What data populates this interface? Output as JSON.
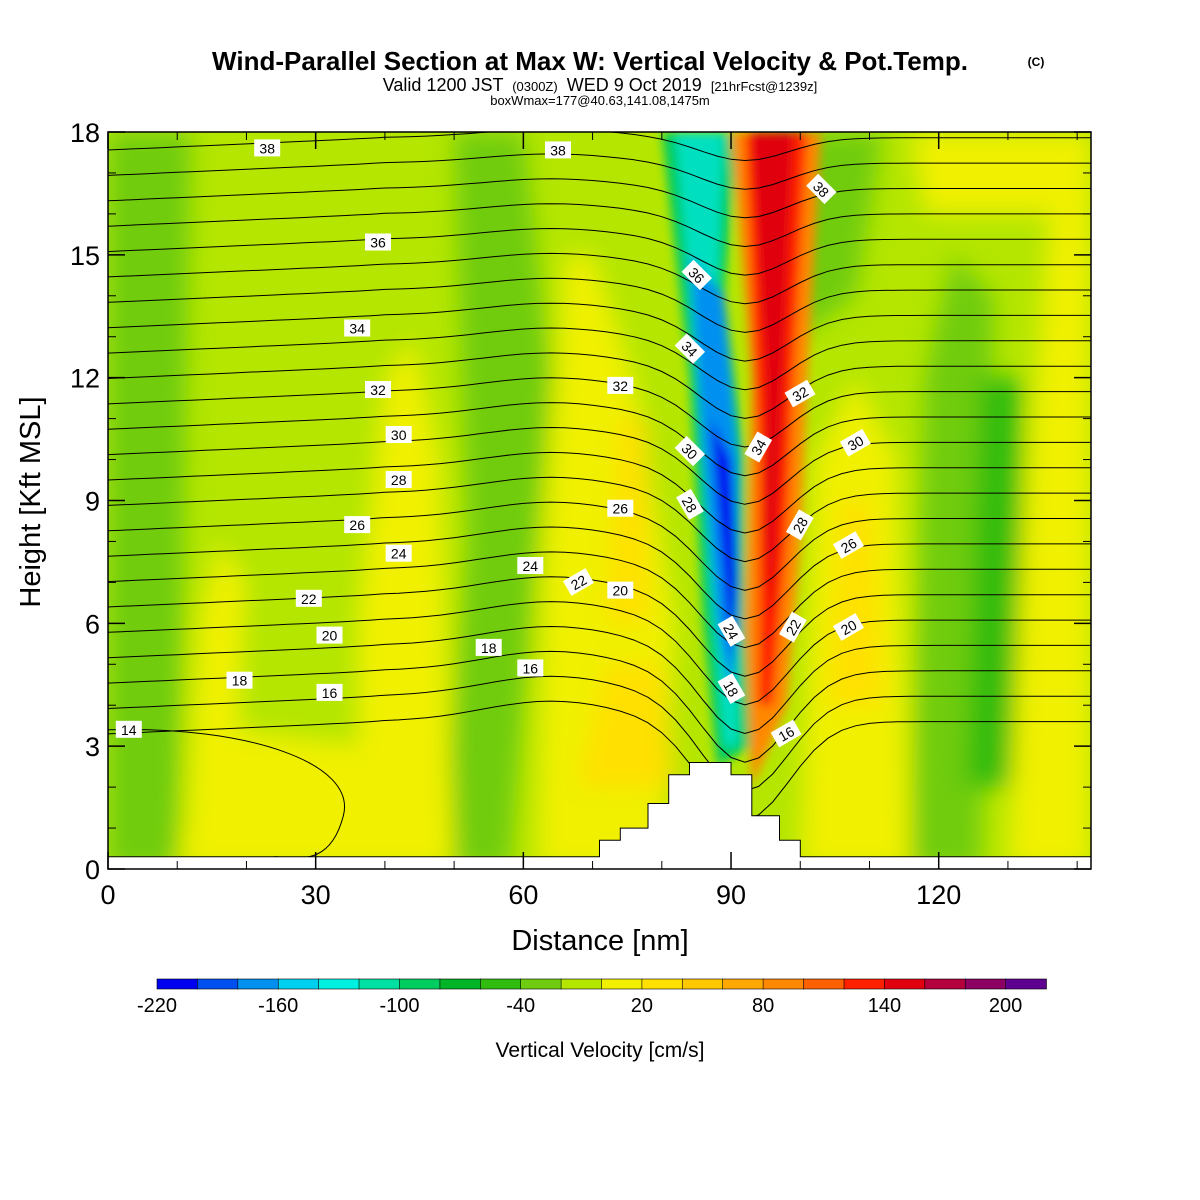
{
  "header": {
    "title": "Wind-Parallel Section at Max W: Vertical Velocity & Pot.Temp.",
    "title_mark": "(C)",
    "valid_prefix": "Valid 1200 JST",
    "valid_utc": "(0300Z)",
    "valid_date": "WED 9 Oct 2019",
    "forecast": "[21hrFcst@1239z]",
    "box_info": "boxWmax=177@40.63,141.08,1475m"
  },
  "chart_data": {
    "type": "heatmap",
    "xlabel": "Distance [nm]",
    "ylabel": "Height [Kft MSL]",
    "xlim": [
      0,
      142
    ],
    "ylim": [
      0,
      18
    ],
    "x_ticks": [
      0,
      30,
      60,
      90,
      120
    ],
    "y_ticks": [
      0,
      3,
      6,
      9,
      12,
      15,
      18
    ],
    "colorbar": {
      "title": "Vertical Velocity [cm/s]",
      "tick_labels": [
        "-220",
        "-160",
        "-100",
        "-40",
        "20",
        "80",
        "140",
        "200"
      ],
      "colors": [
        "#0000f0",
        "#0050f0",
        "#0090f0",
        "#00d0f0",
        "#00f0e0",
        "#00e0a0",
        "#00cc60",
        "#00b428",
        "#30bc10",
        "#70cc10",
        "#b4e600",
        "#f0f000",
        "#ffe000",
        "#ffc800",
        "#ffa800",
        "#ff8800",
        "#ff6000",
        "#ff2000",
        "#e00010",
        "#b4003c",
        "#8c0064",
        "#600090"
      ]
    },
    "topography": [
      [
        0,
        0.3
      ],
      [
        71,
        0.3
      ],
      [
        71,
        0.7
      ],
      [
        74,
        0.7
      ],
      [
        74,
        1.0
      ],
      [
        78,
        1.0
      ],
      [
        78,
        1.6
      ],
      [
        81,
        1.6
      ],
      [
        81,
        2.3
      ],
      [
        84,
        2.3
      ],
      [
        84,
        2.6
      ],
      [
        90,
        2.6
      ],
      [
        90,
        2.3
      ],
      [
        93,
        2.3
      ],
      [
        93,
        1.3
      ],
      [
        97,
        1.3
      ],
      [
        97,
        0.7
      ],
      [
        100,
        0.7
      ],
      [
        100,
        0.3
      ],
      [
        142,
        0.3
      ]
    ],
    "theta_contour_labels": [
      {
        "text": "38",
        "x": 23,
        "y": 17.6,
        "angle": 0
      },
      {
        "text": "38",
        "x": 65,
        "y": 17.55,
        "angle": 0
      },
      {
        "text": "38",
        "x": 103,
        "y": 16.6,
        "angle": 45
      },
      {
        "text": "36",
        "x": 39,
        "y": 15.3,
        "angle": 0
      },
      {
        "text": "36",
        "x": 85,
        "y": 14.5,
        "angle": 45
      },
      {
        "text": "34",
        "x": 36,
        "y": 13.2,
        "angle": 0
      },
      {
        "text": "34",
        "x": 84,
        "y": 12.7,
        "angle": 45
      },
      {
        "text": "34",
        "x": 94,
        "y": 10.3,
        "angle": -60
      },
      {
        "text": "32",
        "x": 39,
        "y": 11.7,
        "angle": 0
      },
      {
        "text": "32",
        "x": 74,
        "y": 11.8,
        "angle": 0
      },
      {
        "text": "32",
        "x": 100,
        "y": 11.6,
        "angle": -30
      },
      {
        "text": "30",
        "x": 42,
        "y": 10.6,
        "angle": 0
      },
      {
        "text": "30",
        "x": 84,
        "y": 10.2,
        "angle": 45
      },
      {
        "text": "30",
        "x": 108,
        "y": 10.4,
        "angle": -30
      },
      {
        "text": "28",
        "x": 42,
        "y": 9.5,
        "angle": 0
      },
      {
        "text": "28",
        "x": 84,
        "y": 8.9,
        "angle": 60
      },
      {
        "text": "28",
        "x": 100,
        "y": 8.4,
        "angle": -60
      },
      {
        "text": "26",
        "x": 36,
        "y": 8.4,
        "angle": 0
      },
      {
        "text": "26",
        "x": 74,
        "y": 8.8,
        "angle": 0
      },
      {
        "text": "26",
        "x": 107,
        "y": 7.9,
        "angle": -30
      },
      {
        "text": "24",
        "x": 42,
        "y": 7.7,
        "angle": 0
      },
      {
        "text": "24",
        "x": 61,
        "y": 7.4,
        "angle": 0
      },
      {
        "text": "24",
        "x": 90,
        "y": 5.8,
        "angle": 60
      },
      {
        "text": "22",
        "x": 29,
        "y": 6.6,
        "angle": 0
      },
      {
        "text": "22",
        "x": 68,
        "y": 7.0,
        "angle": -30
      },
      {
        "text": "22",
        "x": 99,
        "y": 5.9,
        "angle": -60
      },
      {
        "text": "20",
        "x": 32,
        "y": 5.7,
        "angle": 0
      },
      {
        "text": "20",
        "x": 74,
        "y": 6.8,
        "angle": 0
      },
      {
        "text": "20",
        "x": 107,
        "y": 5.9,
        "angle": -30
      },
      {
        "text": "18",
        "x": 19,
        "y": 4.6,
        "angle": 0
      },
      {
        "text": "18",
        "x": 55,
        "y": 5.4,
        "angle": 0
      },
      {
        "text": "18",
        "x": 90,
        "y": 4.4,
        "angle": 60
      },
      {
        "text": "16",
        "x": 32,
        "y": 4.3,
        "angle": 0
      },
      {
        "text": "16",
        "x": 61,
        "y": 4.9,
        "angle": 0
      },
      {
        "text": "16",
        "x": 98,
        "y": 3.3,
        "angle": -30
      },
      {
        "text": "14",
        "x": 3,
        "y": 3.4,
        "angle": 0
      }
    ]
  }
}
